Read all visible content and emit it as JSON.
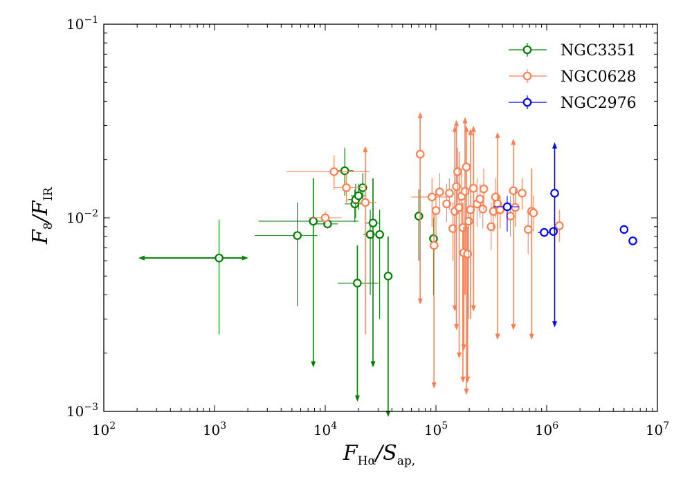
{
  "chart_data": {
    "type": "scatter",
    "title": "",
    "xscale": "log",
    "yscale": "log",
    "xlim": [
      100,
      10000000
    ],
    "ylim": [
      0.001,
      0.1
    ],
    "x_ticks": [
      {
        "value": 100,
        "base": "10",
        "exp": "2"
      },
      {
        "value": 1000,
        "base": "10",
        "exp": "3"
      },
      {
        "value": 10000,
        "base": "10",
        "exp": "4"
      },
      {
        "value": 100000,
        "base": "10",
        "exp": "5"
      },
      {
        "value": 1000000,
        "base": "10",
        "exp": "6"
      },
      {
        "value": 10000000,
        "base": "10",
        "exp": "7"
      }
    ],
    "y_ticks": [
      {
        "value": 0.001,
        "base": "10",
        "exp": "−3"
      },
      {
        "value": 0.01,
        "base": "10",
        "exp": "−2"
      },
      {
        "value": 0.1,
        "base": "10",
        "exp": "−1"
      }
    ],
    "xlabel": {
      "main": "F",
      "sub": "Hα",
      "rest": "/S",
      "sub2": "ap,"
    },
    "ylabel": {
      "main": "F",
      "sub": "8",
      "rest": "/F",
      "sub2": "IR"
    },
    "legend": {
      "position": "top-right"
    },
    "series": [
      {
        "name": "NGC3351",
        "color": "#008000",
        "points": [
          {
            "x": 1100,
            "y": 0.0062,
            "xerr": [
              230,
              1800
            ],
            "yerr": [
              0.0025,
              0.0098
            ],
            "xarrows": true
          },
          {
            "x": 5600,
            "y": 0.0081,
            "xerr": [
              2300,
              8500
            ],
            "yerr": [
              0.0035,
              0.012
            ]
          },
          {
            "x": 7800,
            "y": 0.0096,
            "xerr": [
              2500,
              20000
            ],
            "yerr": [
              0.0018,
              0.016
            ],
            "arrow": "down"
          },
          {
            "x": 10500,
            "y": 0.0093,
            "xerr": [
              8000,
              13000
            ],
            "yerr": [
              0.0088,
              0.0099
            ]
          },
          {
            "x": 15000,
            "y": 0.0175,
            "xerr": [
              12000,
              18000
            ],
            "yerr": [
              0.013,
              0.023
            ]
          },
          {
            "x": 18500,
            "y": 0.0118,
            "xerr": [
              15000,
              22000
            ],
            "yerr": [
              0.0095,
              0.014
            ]
          },
          {
            "x": 18800,
            "y": 0.0124,
            "xerr": [
              16000,
              21000
            ],
            "yerr": [
              0.01,
              0.015
            ]
          },
          {
            "x": 19500,
            "y": 0.0046,
            "xerr": [
              13000,
              30000
            ],
            "yerr": [
              0.0012,
              0.0072
            ],
            "arrow": "down"
          },
          {
            "x": 20000,
            "y": 0.013,
            "xerr": [
              17000,
              23000
            ],
            "yerr": [
              0.011,
              0.015
            ]
          },
          {
            "x": 21800,
            "y": 0.0143,
            "xerr": [
              19000,
              24000
            ],
            "yerr": [
              0.012,
              0.017
            ]
          },
          {
            "x": 25500,
            "y": 0.0082,
            "xerr": [
              22000,
              29000
            ],
            "yerr": [
              0.004,
              0.011
            ]
          },
          {
            "x": 27000,
            "y": 0.0094,
            "xerr": [
              23000,
              31000
            ],
            "yerr": [
              0.0018,
              0.016
            ],
            "arrow": "down"
          },
          {
            "x": 31000,
            "y": 0.0082,
            "xerr": [
              28000,
              34000
            ],
            "yerr": [
              0.003,
              0.011
            ]
          },
          {
            "x": 37000,
            "y": 0.005,
            "xerr": [
              34000,
              40000
            ],
            "yerr": [
              0.001,
              0.008
            ],
            "arrow": "down"
          },
          {
            "x": 70000,
            "y": 0.0102,
            "xerr": [
              68000,
              72000
            ],
            "yerr": [
              0.006,
              0.014
            ]
          },
          {
            "x": 95000,
            "y": 0.0078,
            "xerr": [
              92000,
              98000
            ],
            "yerr": [
              0.004,
              0.01
            ]
          }
        ]
      },
      {
        "name": "NGC0628",
        "color": "#ff7f50",
        "points": [
          {
            "x": 10000,
            "y": 0.01,
            "xerr": [
              7000,
              14000
            ],
            "yerr": [
              0.0092,
              0.0108
            ]
          },
          {
            "x": 12000,
            "y": 0.0173,
            "xerr": [
              4500,
              25000
            ],
            "yerr": [
              0.014,
              0.021
            ]
          },
          {
            "x": 15500,
            "y": 0.0143,
            "xerr": [
              12000,
              22000
            ],
            "yerr": [
              0.012,
              0.017
            ]
          },
          {
            "x": 23000,
            "y": 0.012,
            "xerr": [
              18000,
              29000
            ],
            "yerr": [
              0.0025,
              0.022
            ],
            "arrow": "up"
          },
          {
            "x": 72000,
            "y": 0.0213,
            "xerr": [
              70000,
              74000
            ],
            "yerr": [
              0.0038,
              0.033
            ],
            "arrow": "both"
          },
          {
            "x": 92000,
            "y": 0.0128,
            "xerr": [
              60000,
              140000
            ],
            "yerr": [
              0.009,
              0.016
            ]
          },
          {
            "x": 96000,
            "y": 0.0072,
            "xerr": [
              88000,
              104000
            ],
            "yerr": [
              0.0014,
              0.011
            ],
            "arrow": "down"
          },
          {
            "x": 100000,
            "y": 0.0109,
            "xerr": [
              93000,
              108000
            ],
            "yerr": [
              0.008,
              0.014
            ]
          },
          {
            "x": 108000,
            "y": 0.0136,
            "xerr": [
              100000,
              116000
            ],
            "yerr": [
              0.011,
              0.017
            ]
          },
          {
            "x": 125000,
            "y": 0.0118,
            "xerr": [
              115000,
              135000
            ],
            "yerr": [
              0.0095,
              0.015
            ]
          },
          {
            "x": 132000,
            "y": 0.0134,
            "xerr": [
              122000,
              142000
            ],
            "yerr": [
              0.011,
              0.016
            ]
          },
          {
            "x": 142000,
            "y": 0.0088,
            "xerr": [
              132000,
              152000
            ],
            "yerr": [
              0.006,
              0.012
            ]
          },
          {
            "x": 148000,
            "y": 0.0108,
            "xerr": [
              138000,
              158000
            ],
            "yerr": [
              0.0035,
              0.028
            ],
            "arrow": "both"
          },
          {
            "x": 153000,
            "y": 0.0145,
            "xerr": [
              143000,
              163000
            ],
            "yerr": [
              0.0028,
              0.03
            ],
            "arrow": "both"
          },
          {
            "x": 157000,
            "y": 0.0173,
            "xerr": [
              147000,
              167000
            ],
            "yerr": [
              0.012,
              0.023
            ]
          },
          {
            "x": 162000,
            "y": 0.0113,
            "xerr": [
              152000,
              172000
            ],
            "yerr": [
              0.002,
              0.022
            ],
            "arrow": "down"
          },
          {
            "x": 170000,
            "y": 0.0129,
            "xerr": [
              160000,
              180000
            ],
            "yerr": [
              0.009,
              0.018
            ]
          },
          {
            "x": 175000,
            "y": 0.0089,
            "xerr": [
              165000,
              185000
            ],
            "yerr": [
              0.0015,
              0.012
            ],
            "arrow": "down"
          },
          {
            "x": 178000,
            "y": 0.0066,
            "xerr": [
              168000,
              188000
            ],
            "yerr": [
              0.0022,
              0.009
            ],
            "arrow": "down"
          },
          {
            "x": 183000,
            "y": 0.0137,
            "xerr": [
              173000,
              193000
            ],
            "yerr": [
              0.004,
              0.031
            ],
            "arrow": "up"
          },
          {
            "x": 188000,
            "y": 0.0183,
            "xerr": [
              178000,
              198000
            ],
            "yerr": [
              0.0013,
              0.028
            ],
            "arrow": "both"
          },
          {
            "x": 193000,
            "y": 0.0065,
            "xerr": [
              183000,
              203000
            ],
            "yerr": [
              0.0015,
              0.009
            ],
            "arrow": "down"
          },
          {
            "x": 198000,
            "y": 0.0096,
            "xerr": [
              188000,
              208000
            ],
            "yerr": [
              0.003,
              0.014
            ]
          },
          {
            "x": 205000,
            "y": 0.011,
            "xerr": [
              195000,
              215000
            ],
            "yerr": [
              0.003,
              0.027
            ],
            "arrow": "up"
          },
          {
            "x": 218000,
            "y": 0.0142,
            "xerr": [
              208000,
              228000
            ],
            "yerr": [
              0.0035,
              0.028
            ],
            "arrow": "both"
          },
          {
            "x": 235000,
            "y": 0.0118,
            "xerr": [
              225000,
              245000
            ],
            "yerr": [
              0.009,
              0.016
            ]
          },
          {
            "x": 250000,
            "y": 0.0125,
            "xerr": [
              240000,
              260000
            ],
            "yerr": [
              0.01,
              0.015
            ]
          },
          {
            "x": 265000,
            "y": 0.0111,
            "xerr": [
              255000,
              275000
            ],
            "yerr": [
              0.0088,
              0.013
            ]
          },
          {
            "x": 270000,
            "y": 0.0141,
            "xerr": [
              260000,
              280000
            ],
            "yerr": [
              0.011,
              0.018
            ]
          },
          {
            "x": 315000,
            "y": 0.009,
            "xerr": [
              300000,
              330000
            ],
            "yerr": [
              0.0068,
              0.012
            ]
          },
          {
            "x": 330000,
            "y": 0.0108,
            "xerr": [
              310000,
              350000
            ],
            "yerr": [
              0.0085,
              0.013
            ]
          },
          {
            "x": 345000,
            "y": 0.0128,
            "xerr": [
              330000,
              360000
            ],
            "yerr": [
              0.01,
              0.016
            ]
          },
          {
            "x": 360000,
            "y": 0.0118,
            "xerr": [
              340000,
              380000
            ],
            "yerr": [
              0.0025,
              0.026
            ],
            "arrow": "both"
          },
          {
            "x": 380000,
            "y": 0.011,
            "xerr": [
              360000,
              400000
            ],
            "yerr": [
              0.0088,
              0.013
            ]
          },
          {
            "x": 470000,
            "y": 0.0102,
            "xerr": [
              440000,
              500000
            ],
            "yerr": [
              0.008,
              0.013
            ]
          },
          {
            "x": 500000,
            "y": 0.0138,
            "xerr": [
              470000,
              530000
            ],
            "yerr": [
              0.0028,
              0.024
            ],
            "arrow": "both"
          },
          {
            "x": 520000,
            "y": 0.0113,
            "xerr": [
              490000,
              550000
            ],
            "yerr": [
              0.009,
              0.014
            ]
          },
          {
            "x": 600000,
            "y": 0.0134,
            "xerr": [
              560000,
              640000
            ],
            "yerr": [
              0.011,
              0.016
            ]
          },
          {
            "x": 680000,
            "y": 0.0087,
            "xerr": [
              640000,
              720000
            ],
            "yerr": [
              0.0065,
              0.011
            ]
          },
          {
            "x": 730000,
            "y": 0.0108,
            "xerr": [
              690000,
              770000
            ],
            "yerr": [
              0.0025,
              0.018
            ],
            "arrow": "down"
          },
          {
            "x": 760000,
            "y": 0.0106,
            "xerr": [
              720000,
              800000
            ],
            "yerr": [
              0.0085,
              0.013
            ]
          },
          {
            "x": 1300000,
            "y": 0.0091,
            "xerr": [
              1200000,
              1400000
            ],
            "yerr": [
              0.0075,
              0.011
            ]
          }
        ]
      },
      {
        "name": "NGC2976",
        "color": "#0000ff",
        "points": [
          {
            "x": 440000,
            "y": 0.0114,
            "xerr": [
              330000,
              560000
            ],
            "yerr": [
              0.0085,
              0.013
            ]
          },
          {
            "x": 950000,
            "y": 0.0084,
            "xerr": [
              830000,
              1070000
            ],
            "yerr": [
              0.0082,
              0.0086
            ]
          },
          {
            "x": 1150000,
            "y": 0.0085,
            "xerr": [
              1050000,
              1250000
            ],
            "yerr": [
              0.0083,
              0.0087
            ]
          },
          {
            "x": 1180000,
            "y": 0.0134,
            "xerr": [
              1130000,
              1230000
            ],
            "yerr": [
              0.0029,
              0.023
            ],
            "arrow": "both"
          },
          {
            "x": 5000000,
            "y": 0.0087,
            "xerr": [
              4800000,
              5200000
            ],
            "yerr": [
              0.0083,
              0.0091
            ]
          },
          {
            "x": 6000000,
            "y": 0.0076,
            "xerr": [
              5800000,
              6200000
            ],
            "yerr": [
              0.0073,
              0.0079
            ]
          }
        ]
      }
    ]
  }
}
